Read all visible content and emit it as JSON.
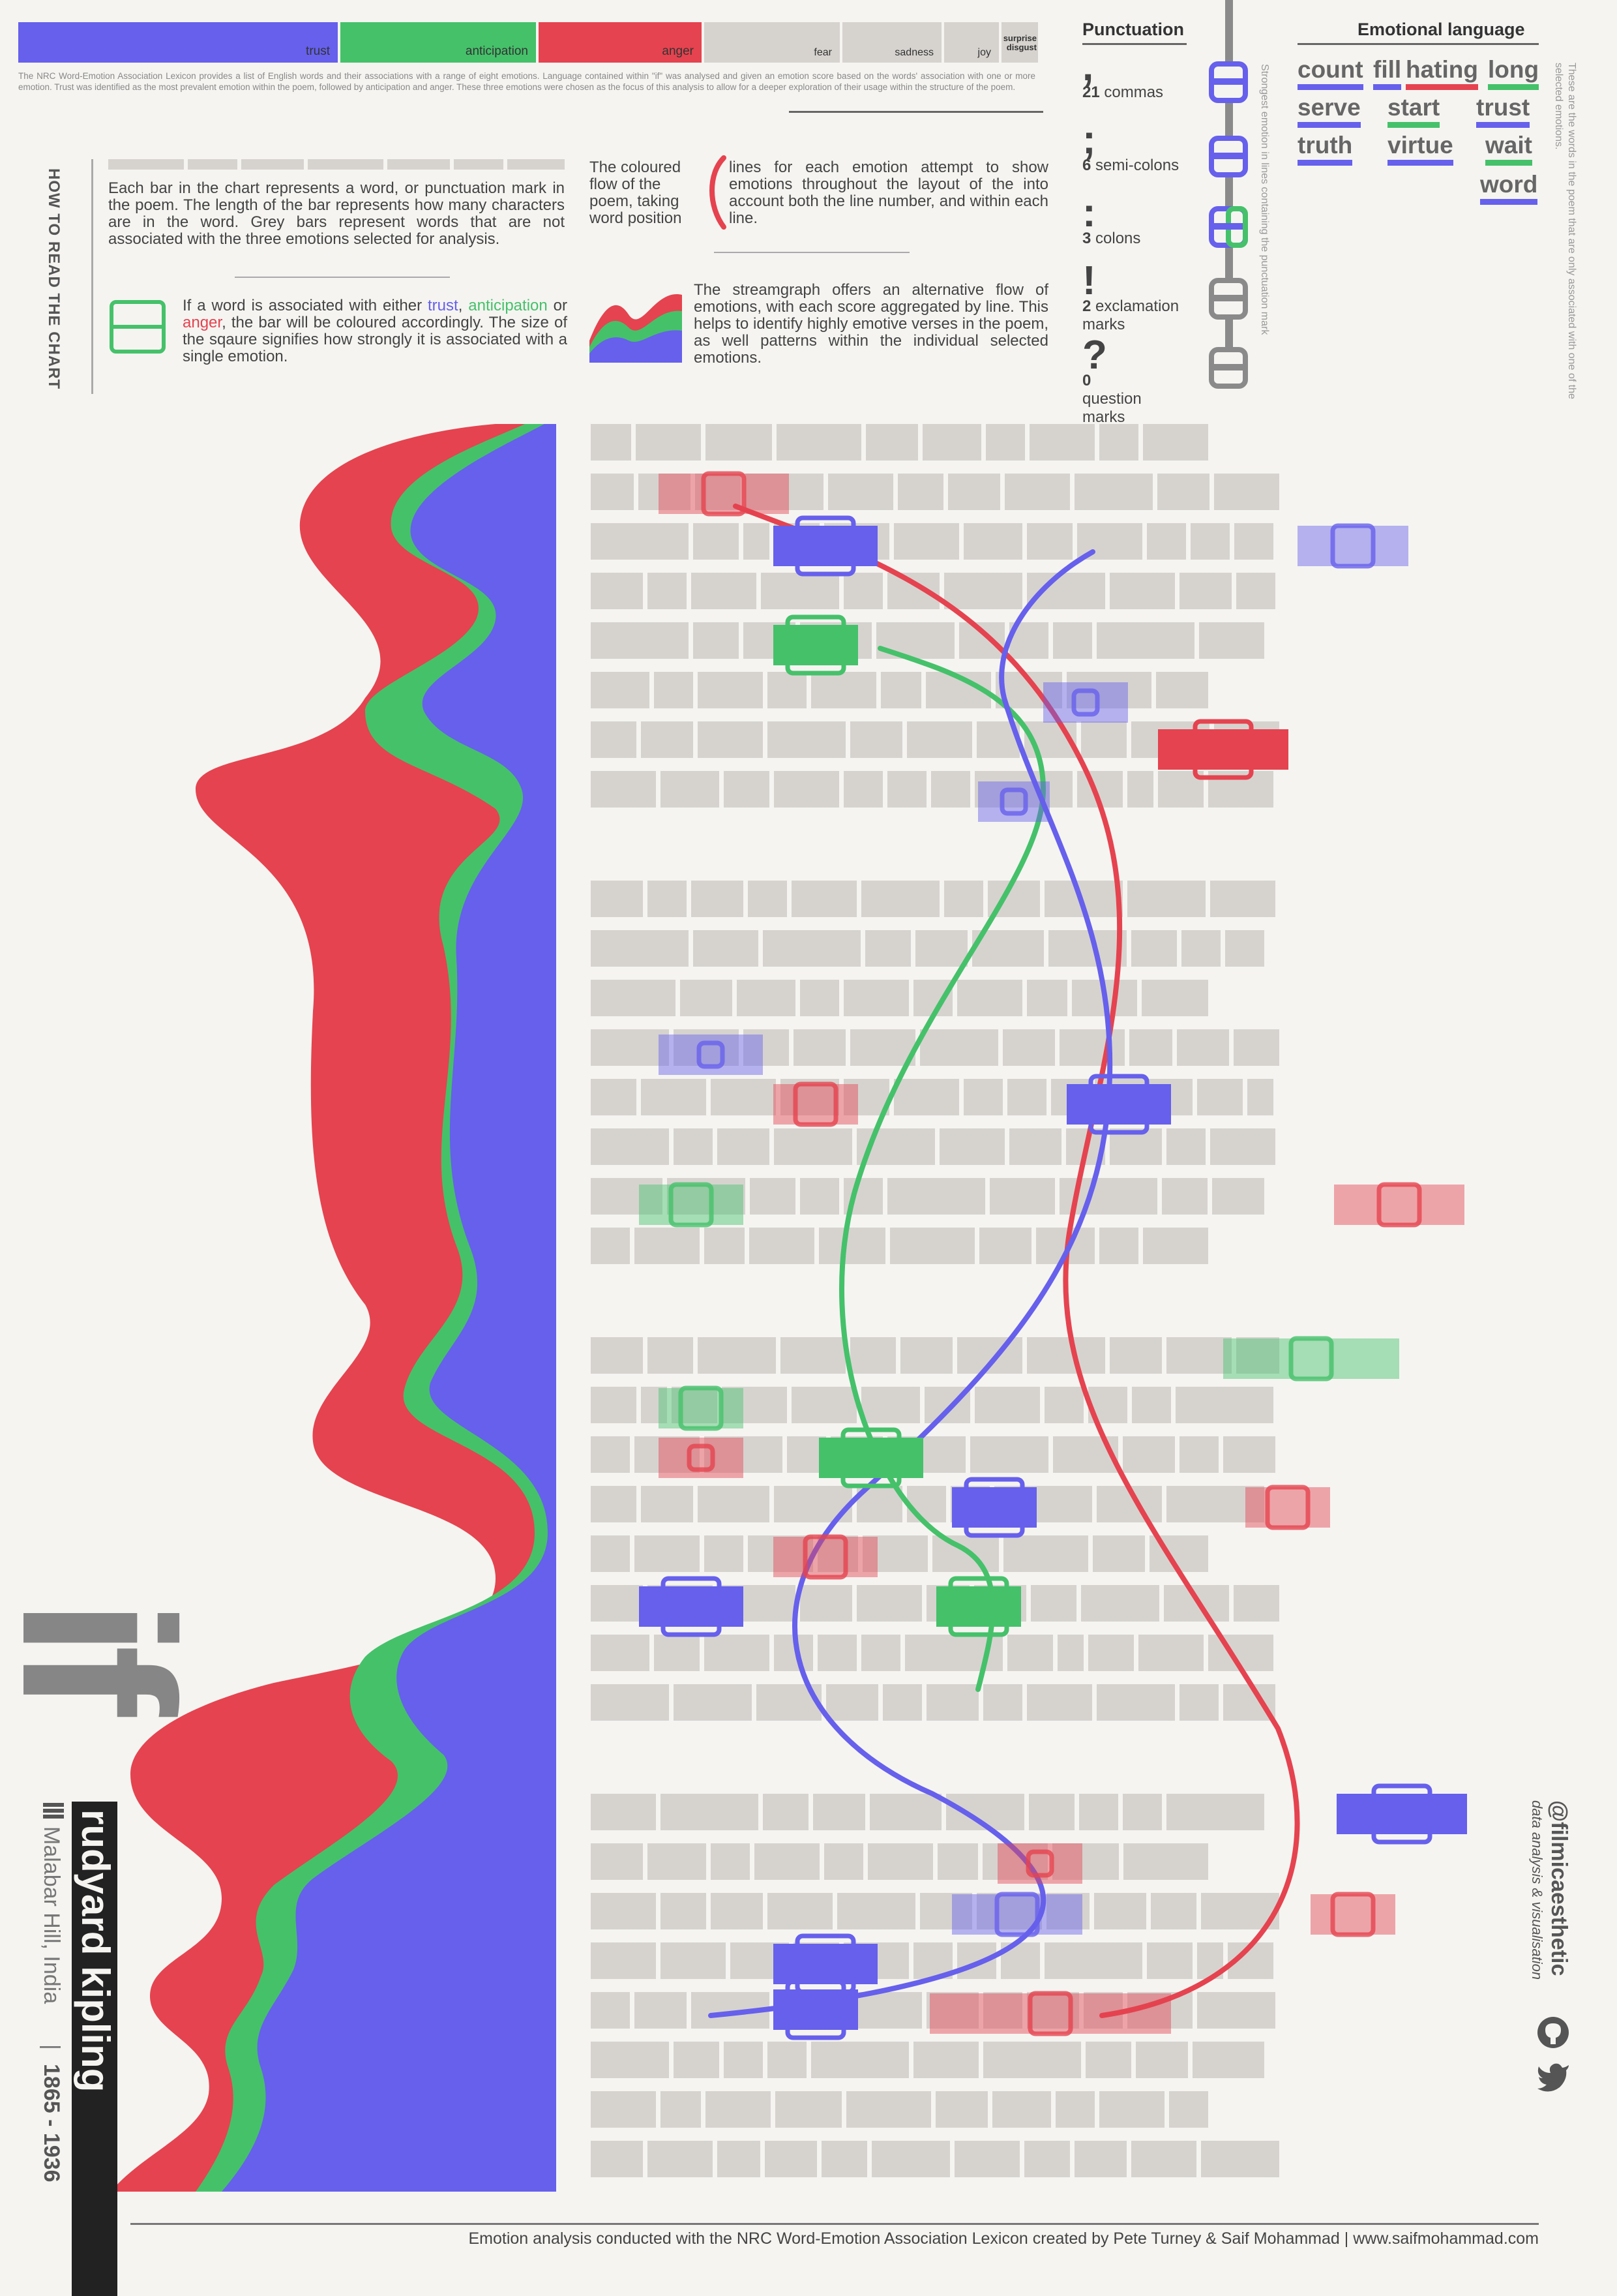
{
  "legend": [
    {
      "label": "trust",
      "color": "#6660ec"
    },
    {
      "label": "anticipation",
      "color": "#45c16a"
    },
    {
      "label": "anger",
      "color": "#e5434f"
    },
    {
      "label": "fear",
      "color": "#d6d3cf"
    },
    {
      "label": "sadness",
      "color": "#d6d3cf"
    },
    {
      "label": "joy",
      "color": "#d6d3cf"
    },
    {
      "label": "surprise",
      "color": "#d6d3cf"
    },
    {
      "label": "disgust",
      "color": "#d6d3cf"
    }
  ],
  "intro": "The NRC Word-Emotion Association Lexicon provides a list of English words and their associations with a range of eight emotions. Language contained within \"if\" was analysed and given an emotion score based on the words' association with one or more emotion. Trust was identified as the most prevalent emotion within the poem, followed by anticipation and anger. These three emotions were chosen as the focus of this analysis to allow for a deeper exploration of their usage within the structure of the poem.",
  "how_to_read": {
    "title": "HOW TO READ THE CHART",
    "bars_text": "Each bar in the chart represents a word, or punctuation mark in the poem. The length of the bar represents how many characters are in the word. Grey bars represent words that are not associated with the three emotions selected for analysis.",
    "square_text_1": "If a word is associated with either ",
    "trust": "trust",
    "sep1": ", ",
    "anticipation": "anticipation",
    "sep2": " or ",
    "anger": "anger",
    "square_text_2": ", the bar will be coloured accordingly. The size of the sqaure signifies how strongly it is associated with a single emotion.",
    "lines_text_a": "The coloured flow of the poem, taking word position",
    "lines_text_b": "lines for each emotion attempt to show emotions throughout the layout of the into account both the line number, and within each line.",
    "stream_text": "The streamgraph offers an alternative flow of emotions, with each score aggregated by line. This helps to identify highly emotive verses in the poem, as well patterns within the individual selected emotions."
  },
  "punctuation": {
    "title": "Punctuation",
    "items": [
      {
        "glyph": ",",
        "count": "21",
        "label": "commas"
      },
      {
        "glyph": ";",
        "count": "6",
        "label": "semi-colons"
      },
      {
        "glyph": ":",
        "count": "3",
        "label": "colons"
      },
      {
        "glyph": "!",
        "count": "2",
        "label": "exclamation marks"
      },
      {
        "glyph": "?",
        "count": "0",
        "label": "question marks"
      }
    ],
    "note": "Strongest emotion in lines containing the punctuation mark"
  },
  "emotional_language": {
    "title": "Emotional language",
    "words": [
      {
        "word": "count",
        "color": "#6660ec"
      },
      {
        "word": "fill",
        "color": "#6660ec"
      },
      {
        "word": "hating",
        "color": "#e5434f"
      },
      {
        "word": "long",
        "color": "#45c16a"
      },
      {
        "word": "serve",
        "color": "#6660ec"
      },
      {
        "word": "start",
        "color": "#45c16a"
      },
      {
        "word": "trust",
        "color": "#6660ec"
      },
      {
        "word": "truth",
        "color": "#6660ec"
      },
      {
        "word": "virtue",
        "color": "#6660ec"
      },
      {
        "word": "wait",
        "color": "#45c16a"
      },
      {
        "word": "word",
        "color": "#6660ec"
      }
    ],
    "note": "These are the words in the poem that are only associated with one of the selected emotions."
  },
  "poem": {
    "title": "if",
    "author": "rudyard kipling",
    "place": "Malabar Hill, India",
    "years": "1865 - 1936"
  },
  "credit": {
    "handle": "@filmicaesthetic",
    "role": "data analysis & visualisation"
  },
  "footer": "Emotion analysis conducted with the NRC Word-Emotion Association Lexicon created by Pete Turney & Saif Mohammad  |  www.saifmohammad.com"
}
